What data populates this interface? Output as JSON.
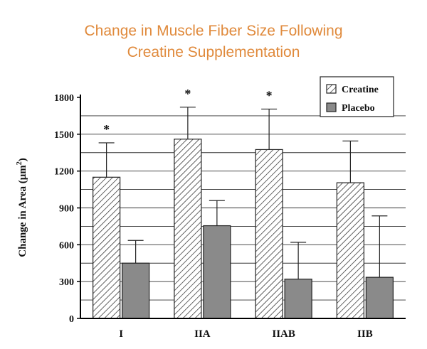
{
  "title_line1": "Change in Muscle Fiber Size Following",
  "title_line2": "Creatine Supplementation",
  "chart_data": {
    "type": "bar",
    "ylabel": "Change in Area (μm²)",
    "ylabel_main": "Change in Area (μm",
    "ylabel_sup": "2",
    "ylabel_end": ")",
    "ylim": [
      0,
      1800
    ],
    "yticks": [
      0,
      300,
      600,
      900,
      1200,
      1500,
      1800
    ],
    "grid": true,
    "legend_position": "top-right",
    "categories": [
      "I",
      "IIA",
      "IIAB",
      "IIB"
    ],
    "series": [
      {
        "name": "Creatine",
        "values": [
          1150,
          1460,
          1375,
          1105
        ],
        "errors": [
          280,
          260,
          330,
          340
        ],
        "fill": "hatched"
      },
      {
        "name": "Placebo",
        "values": [
          450,
          755,
          320,
          335
        ],
        "errors": [
          185,
          205,
          300,
          500
        ],
        "fill": "#8a8a8a"
      }
    ],
    "significance": [
      {
        "category": "I",
        "label": "*"
      },
      {
        "category": "IIA",
        "label": "*"
      },
      {
        "category": "IIAB",
        "label": "*"
      }
    ]
  }
}
